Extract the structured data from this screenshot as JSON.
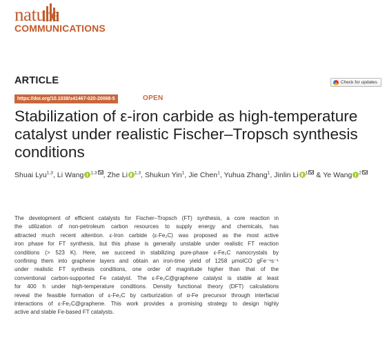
{
  "journal": {
    "logo_word_1": "nature",
    "logo_word_2": "COMMUNICATIONS",
    "brand_color": "#c25b2c"
  },
  "article": {
    "type": "ARTICLE",
    "doi": "https://doi.org/10.1038/s41467-020-20068-5",
    "open_label": "OPEN",
    "check_updates": "Check for updates",
    "accent_color": "#c9673a"
  },
  "title_lines": [
    "Stabilization of ε-iron carbide as high-temperature",
    "catalyst under realistic Fischer–Tropsch synthesis",
    "conditions"
  ],
  "authors": [
    {
      "name": "Shuai Lyu",
      "aff": "1,3",
      "orcid": false,
      "corresponding": false
    },
    {
      "name": "Li Wang",
      "aff": "1,3",
      "orcid": true,
      "corresponding": true
    },
    {
      "name": "Zhe Li",
      "aff": "1,3",
      "orcid": true,
      "corresponding": false
    },
    {
      "name": "Shukun Yin",
      "aff": "1",
      "orcid": false,
      "corresponding": false
    },
    {
      "name": "Jie Chen",
      "aff": "1",
      "orcid": false,
      "corresponding": false
    },
    {
      "name": "Yuhua Zhang",
      "aff": "1",
      "orcid": false,
      "corresponding": false
    },
    {
      "name": "Jinlin Li",
      "aff": "1",
      "orcid": true,
      "corresponding": true
    },
    {
      "name": "Ye Wang",
      "aff": "2",
      "orcid": true,
      "corresponding": true
    }
  ],
  "author_separators": [
    ", ",
    ", ",
    ", ",
    ", ",
    ", ",
    ", ",
    " & "
  ],
  "abstract_lines": [
    "The development of efficient catalysts for Fischer–Tropsch (FT) synthesis, a core reaction in",
    "the utilization of non-petroleum carbon resources to supply energy and chemicals, has",
    "attracted much recent attention. ε-Iron carbide (ε-Fe₂C) was proposed as the most active",
    "iron phase for FT synthesis, but this phase is generally unstable under realistic FT reaction",
    "conditions (> 523 K). Here, we succeed in stabilizing pure-phase ε-Fe₂C nanocrystals by",
    "confining them into graphene layers and obtain an iron-time yield of 1258 μmolCO gFe⁻¹s⁻¹",
    "under realistic FT synthesis conditions, one order of magnitude higher than that of the",
    "conventional carbon-supported Fe catalyst. The ε-Fe₂C@graphene catalyst is stable at least",
    "for 400 h under high-temperature conditions. Density functional theory (DFT) calculations",
    "reveal the feasible formation of ε-Fe₂C by carburization of α-Fe precursor through interfacial",
    "interactions of ε-Fe₂C@graphene. This work provides a promising strategy to design highly",
    "active and stable Fe-based FT catalysts."
  ]
}
